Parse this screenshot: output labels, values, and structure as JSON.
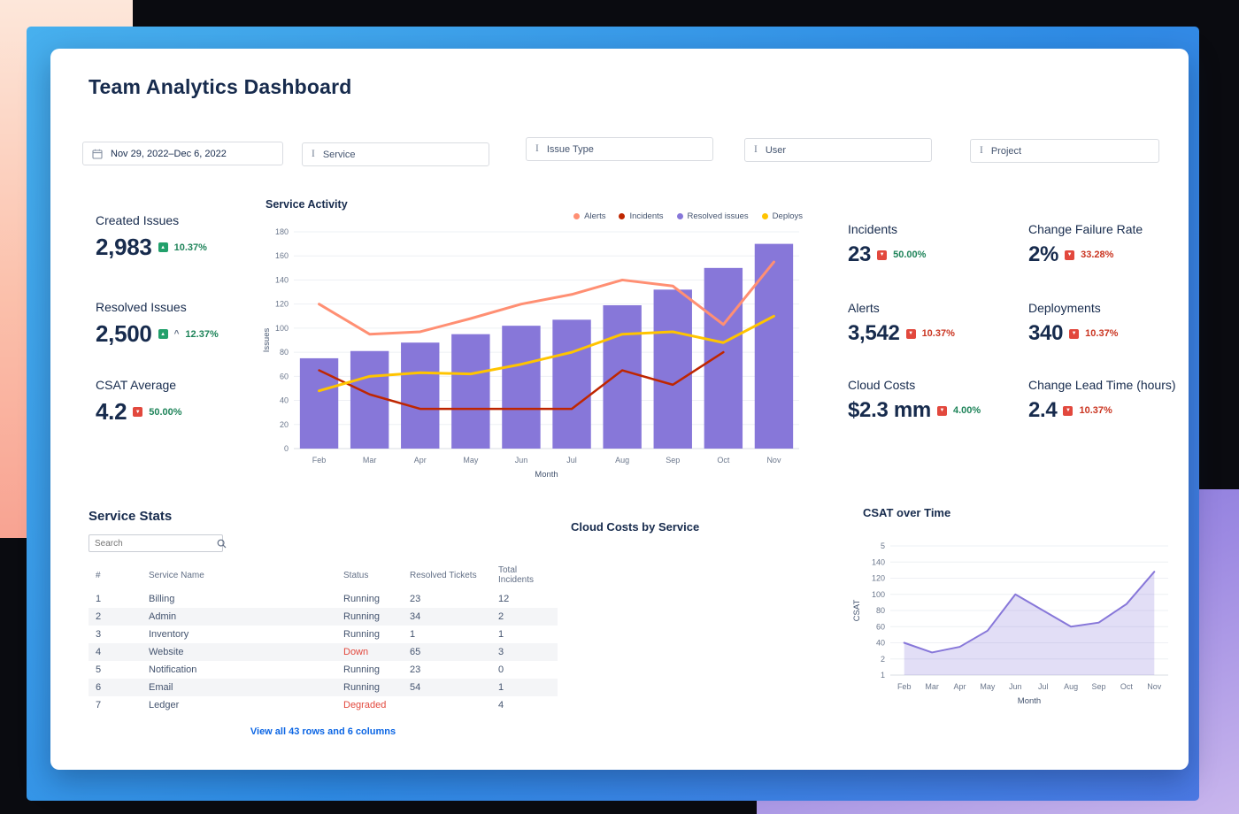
{
  "title": "Team Analytics Dashboard",
  "filters": {
    "date_range": "Nov 29, 2022–Dec 6, 2022",
    "selects": [
      "Service",
      "Issue Type",
      "User",
      "Project"
    ]
  },
  "kpis_left": [
    {
      "label": "Created Issues",
      "value": "2,983",
      "delta": "10.37%",
      "dir": "up",
      "icon_color": "#22a06b",
      "delta_color": "#1f845a"
    },
    {
      "label": "Resolved Issues",
      "value": "2,500",
      "delta": "12.37%",
      "dir": "up",
      "caret": "^",
      "icon_color": "#22a06b",
      "delta_color": "#1f845a"
    },
    {
      "label": "CSAT Average",
      "value": "4.2",
      "delta": "50.00%",
      "dir": "down",
      "icon_color": "#e2483d",
      "delta_color": "#1f845a"
    }
  ],
  "kpis_right": [
    {
      "label": "Incidents",
      "value": "23",
      "delta": "50.00%",
      "dir": "down",
      "icon_color": "#e2483d",
      "delta_color": "#1f845a"
    },
    {
      "label": "Change Failure Rate",
      "value": "2%",
      "delta": "33.28%",
      "dir": "down",
      "icon_color": "#e2483d",
      "delta_color": "#ca3521"
    },
    {
      "label": "Alerts",
      "value": "3,542",
      "delta": "10.37%",
      "dir": "down",
      "icon_color": "#e2483d",
      "delta_color": "#ca3521"
    },
    {
      "label": "Deployments",
      "value": "340",
      "delta": "10.37%",
      "dir": "down",
      "icon_color": "#e2483d",
      "delta_color": "#ca3521"
    },
    {
      "label": "Cloud Costs",
      "value": "$2.3 mm",
      "delta": "4.00%",
      "dir": "down",
      "icon_color": "#e2483d",
      "delta_color": "#1f845a"
    },
    {
      "label": "Change Lead Time (hours)",
      "value": "2.4",
      "delta": "10.37%",
      "dir": "down",
      "icon_color": "#e2483d",
      "delta_color": "#ca3521"
    }
  ],
  "chart_data": [
    {
      "name": "service-activity",
      "type": "combo",
      "title": "Service Activity",
      "xlabel": "Month",
      "ylabel": "Issues",
      "categories": [
        "Feb",
        "Mar",
        "Apr",
        "May",
        "Jun",
        "Jul",
        "Aug",
        "Sep",
        "Oct",
        "Nov"
      ],
      "ylim": [
        0,
        180
      ],
      "ytick_labels": [
        "0",
        "20",
        "40",
        "60",
        "80",
        "100",
        "120",
        "140",
        "160",
        "180"
      ],
      "legend": [
        {
          "label": "Alerts",
          "color": "#ff8f73"
        },
        {
          "label": "Incidents",
          "color": "#bf2600"
        },
        {
          "label": "Resolved issues",
          "color": "#8777d9"
        },
        {
          "label": "Deploys",
          "color": "#ffc400"
        }
      ],
      "series": [
        {
          "name": "Resolved issues",
          "type": "bar",
          "color": "#8777d9",
          "values": [
            75,
            81,
            88,
            95,
            102,
            107,
            119,
            132,
            150,
            170
          ]
        },
        {
          "name": "Alerts",
          "type": "line",
          "color": "#ff8f73",
          "width": 3,
          "values": [
            120,
            95,
            97,
            108,
            120,
            128,
            140,
            135,
            103,
            155
          ]
        },
        {
          "name": "Incidents",
          "type": "line",
          "color": "#bf2600",
          "width": 2.5,
          "values": [
            65,
            45,
            33,
            33,
            33,
            33,
            65,
            53,
            80,
            null
          ]
        },
        {
          "name": "Deploys",
          "type": "line",
          "color": "#ffc400",
          "width": 3,
          "values": [
            48,
            60,
            63,
            62,
            70,
            80,
            95,
            97,
            88,
            110
          ]
        }
      ]
    },
    {
      "name": "csat-over-time",
      "type": "area",
      "title": "CSAT over Time",
      "xlabel": "Month",
      "ylabel": "CSAT",
      "categories": [
        "Feb",
        "Mar",
        "Apr",
        "May",
        "Jun",
        "Jul",
        "Aug",
        "Sep",
        "Oct",
        "Nov"
      ],
      "ylim": [
        0,
        160
      ],
      "ytick_labels": [
        "1",
        "2",
        "40",
        "60",
        "80",
        "100",
        "120",
        "140",
        "5"
      ],
      "series": [
        {
          "name": "CSAT",
          "type": "line",
          "color": "#8777d9",
          "width": 2,
          "fill": "rgba(135,119,217,0.24)",
          "values": [
            40,
            28,
            35,
            55,
            100,
            80,
            60,
            65,
            88,
            128
          ]
        }
      ]
    }
  ],
  "service_stats": {
    "title": "Service Stats",
    "search_placeholder": "Search",
    "columns": [
      "#",
      "Service Name",
      "Status",
      "Resolved Tickets",
      "Total Incidents"
    ],
    "rows": [
      {
        "n": "1",
        "name": "Billing",
        "status": "Running",
        "bad": false,
        "resolved": "23",
        "incidents": "12"
      },
      {
        "n": "2",
        "name": "Admin",
        "status": "Running",
        "bad": false,
        "resolved": "34",
        "incidents": "2"
      },
      {
        "n": "3",
        "name": "Inventory",
        "status": "Running",
        "bad": false,
        "resolved": "1",
        "incidents": "1"
      },
      {
        "n": "4",
        "name": "Website",
        "status": "Down",
        "bad": true,
        "resolved": "65",
        "incidents": "3"
      },
      {
        "n": "5",
        "name": "Notification",
        "status": "Running",
        "bad": false,
        "resolved": "23",
        "incidents": "0"
      },
      {
        "n": "6",
        "name": "Email",
        "status": "Running",
        "bad": false,
        "resolved": "54",
        "incidents": "1"
      },
      {
        "n": "7",
        "name": "Ledger",
        "status": "Degraded",
        "bad": true,
        "resolved": "",
        "incidents": "4"
      }
    ],
    "footer_link": "View all 43 rows and 6 columns"
  },
  "cloud_costs": {
    "title": "Cloud Costs by Service"
  },
  "colors": {
    "accent_purple": "#8777d9",
    "green": "#1f845a",
    "red": "#ca3521",
    "link": "#0c66e4"
  }
}
